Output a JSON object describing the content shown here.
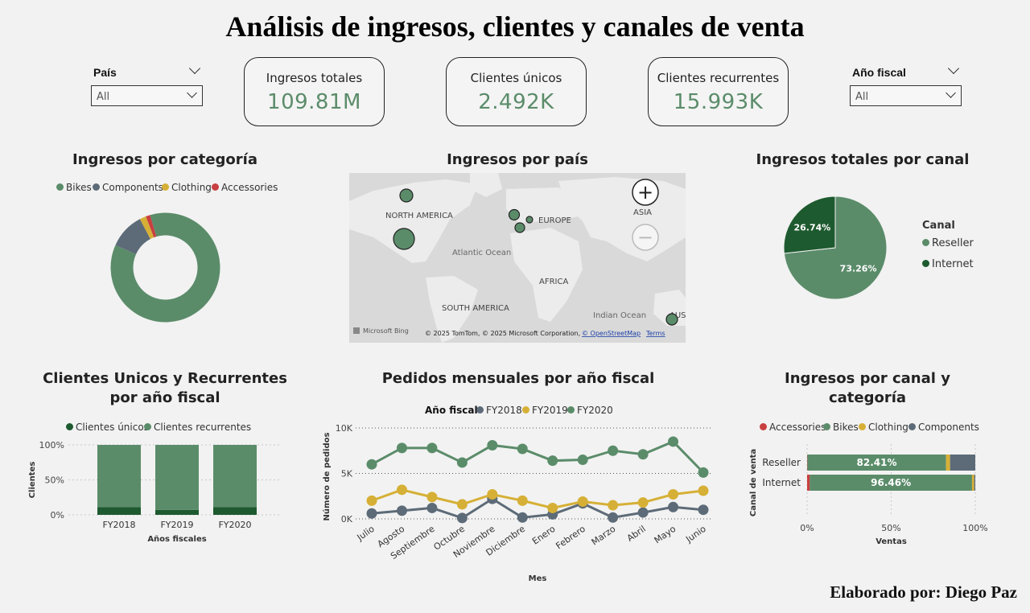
{
  "header": {
    "title": "Análisis de ingresos, clientes y canales de venta"
  },
  "footer": {
    "credit": "Elaborado por: Diego Paz"
  },
  "slicers": [
    {
      "label": "País",
      "value": "All"
    },
    {
      "label": "Año fiscal",
      "value": "All"
    }
  ],
  "kpis": [
    {
      "label": "Ingresos totales",
      "value": "109.81M"
    },
    {
      "label": "Clientes únicos",
      "value": "2.492K"
    },
    {
      "label": "Clientes recurrentes",
      "value": "15.993K"
    }
  ],
  "colors": {
    "bikes": "#5b8c6a",
    "components": "#5d6b78",
    "clothing": "#d6b036",
    "accessories": "#c94040",
    "dark_green": "#1e5a2f",
    "fy2018": "#5d6b78",
    "fy2019": "#d6b036",
    "fy2020": "#5b8c6a"
  },
  "map": {
    "title": "Ingresos por país",
    "labels": [
      "NORTH AMERICA",
      "EUROPE",
      "ASIA",
      "Atlantic Ocean",
      "AFRICA",
      "SOUTH AMERICA",
      "Indian Ocean",
      "AUST"
    ],
    "attribution": "© 2025 TomTom, © 2025 Microsoft Corporation,",
    "osm": "© OpenStreetMap",
    "terms": "Terms",
    "brand": "Microsoft Bing",
    "zoom_in": "+",
    "zoom_out": "−"
  },
  "chart_data": [
    {
      "type": "pie",
      "donut": true,
      "title": "Ingresos por categoría",
      "legend_position": "top",
      "categories": [
        "Bikes",
        "Components",
        "Clothing",
        "Accessories"
      ],
      "values": [
        86.2,
        10.6,
        1.9,
        1.3
      ]
    },
    {
      "type": "pie",
      "title": "Ingresos totales por canal",
      "legend_title": "Canal",
      "legend_position": "right",
      "categories": [
        "Reseller",
        "Internet"
      ],
      "values": [
        73.26,
        26.74
      ],
      "data_labels": [
        "73.26%",
        "26.74%"
      ]
    },
    {
      "type": "bar",
      "stacked": "100%",
      "title": "Clientes Unicos y Recurrentes por año fiscal",
      "xlabel": "Años fiscales",
      "ylabel": "Clientes",
      "categories": [
        "FY2018",
        "FY2019",
        "FY2020"
      ],
      "series": [
        {
          "name": "Clientes únicos",
          "values": [
            11,
            7,
            11
          ]
        },
        {
          "name": "Clientes recurrentes",
          "values": [
            89,
            93,
            89
          ]
        }
      ],
      "y_ticks": [
        "0%",
        "50%",
        "100%"
      ],
      "ylim": [
        0,
        100
      ],
      "grid": true
    },
    {
      "type": "line",
      "title": "Pedidos mensuales por año fiscal",
      "legend_title": "Año fiscal",
      "xlabel": "Mes",
      "ylabel": "Número de pedidos",
      "categories": [
        "Julio",
        "Agosto",
        "Septiembre",
        "Octubre",
        "Noviembre",
        "Diciembre",
        "Enero",
        "Febrero",
        "Marzo",
        "Abril",
        "Mayo",
        "Junio"
      ],
      "series": [
        {
          "name": "FY2018",
          "values": [
            600,
            900,
            1200,
            100,
            2200,
            150,
            500,
            1700,
            150,
            700,
            1300,
            1000
          ]
        },
        {
          "name": "FY2019",
          "values": [
            2000,
            3200,
            2400,
            1600,
            2700,
            2000,
            1200,
            1900,
            1500,
            1800,
            2700,
            3100
          ]
        },
        {
          "name": "FY2020",
          "values": [
            6000,
            7800,
            7800,
            6200,
            8100,
            7700,
            6400,
            6500,
            7500,
            7100,
            8500,
            5100
          ]
        }
      ],
      "y_ticks": [
        "0K",
        "5K",
        "10K"
      ],
      "ylim": [
        0,
        10000
      ],
      "grid": true
    },
    {
      "type": "bar",
      "orientation": "horizontal",
      "stacked": "100%",
      "title": "Ingresos por canal y categoría",
      "xlabel": "Ventas",
      "ylabel": "Canal de venta",
      "categories": [
        "Reseller",
        "Internet"
      ],
      "series": [
        {
          "name": "Accessories",
          "values": [
            0.2,
            1.6
          ]
        },
        {
          "name": "Bikes",
          "values": [
            82.41,
            96.46
          ]
        },
        {
          "name": "Clothing",
          "values": [
            2.4,
            1.3
          ]
        },
        {
          "name": "Components",
          "values": [
            14.99,
            0.64
          ]
        }
      ],
      "data_labels": [
        "82.41%",
        "96.46%"
      ],
      "x_ticks": [
        "0%",
        "50%",
        "100%"
      ],
      "xlim": [
        0,
        100
      ],
      "grid": true
    }
  ]
}
